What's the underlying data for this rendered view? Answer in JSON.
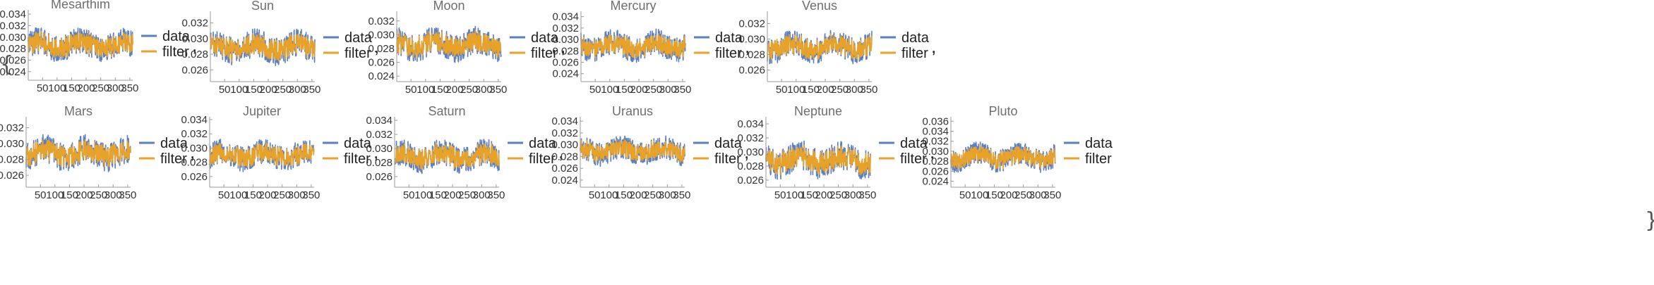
{
  "colors": {
    "data": "#5b7fc4",
    "filter": "#e8a228",
    "axis": "#9a9a9a"
  },
  "legend": {
    "data_label": "data",
    "filter_label": "filter"
  },
  "separator": ",",
  "brace_open": "{",
  "brace_close": "}",
  "chart_data": [
    {
      "type": "line",
      "title": "Mesarthim",
      "xlim": [
        1,
        360
      ],
      "ylim": [
        0.0225,
        0.0345
      ],
      "xticks": [
        50,
        100,
        150,
        200,
        250,
        300,
        350
      ],
      "yticks": [
        0.024,
        0.026,
        0.028,
        0.03,
        0.032,
        0.034
      ],
      "mean": 0.0286,
      "amplitude": 0.0022,
      "series": [
        {
          "name": "data"
        },
        {
          "name": "filter"
        }
      ]
    },
    {
      "type": "line",
      "title": "Sun",
      "xlim": [
        1,
        360
      ],
      "ylim": [
        0.0245,
        0.0333
      ],
      "xticks": [
        50,
        100,
        150,
        200,
        250,
        300,
        350
      ],
      "yticks": [
        0.026,
        0.028,
        0.03,
        0.032
      ],
      "mean": 0.0289,
      "amplitude": 0.0017,
      "series": [
        {
          "name": "data"
        },
        {
          "name": "filter"
        }
      ]
    },
    {
      "type": "line",
      "title": "Moon",
      "xlim": [
        1,
        360
      ],
      "ylim": [
        0.0232,
        0.0332
      ],
      "xticks": [
        50,
        100,
        150,
        200,
        250,
        300,
        350
      ],
      "yticks": [
        0.024,
        0.026,
        0.028,
        0.03,
        0.032
      ],
      "mean": 0.0286,
      "amplitude": 0.0019,
      "series": [
        {
          "name": "data"
        },
        {
          "name": "filter"
        }
      ]
    },
    {
      "type": "line",
      "title": "Mercury",
      "xlim": [
        1,
        360
      ],
      "ylim": [
        0.0226,
        0.0347
      ],
      "xticks": [
        50,
        100,
        150,
        200,
        250,
        300,
        350
      ],
      "yticks": [
        0.024,
        0.026,
        0.028,
        0.03,
        0.032,
        0.034
      ],
      "mean": 0.0289,
      "amplitude": 0.0021,
      "series": [
        {
          "name": "data"
        },
        {
          "name": "filter"
        }
      ]
    },
    {
      "type": "line",
      "title": "Venus",
      "xlim": [
        1,
        360
      ],
      "ylim": [
        0.0245,
        0.0334
      ],
      "xticks": [
        50,
        100,
        150,
        200,
        250,
        300,
        350
      ],
      "yticks": [
        0.026,
        0.028,
        0.03,
        0.032
      ],
      "mean": 0.029,
      "amplitude": 0.0016,
      "series": [
        {
          "name": "data"
        },
        {
          "name": "filter"
        }
      ]
    },
    {
      "type": "line",
      "title": "Mars",
      "xlim": [
        1,
        360
      ],
      "ylim": [
        0.0245,
        0.0332
      ],
      "xticks": [
        50,
        100,
        150,
        200,
        250,
        300,
        350
      ],
      "yticks": [
        0.026,
        0.028,
        0.03,
        0.032
      ],
      "mean": 0.0288,
      "amplitude": 0.0017,
      "series": [
        {
          "name": "data"
        },
        {
          "name": "filter"
        }
      ]
    },
    {
      "type": "line",
      "title": "Jupiter",
      "xlim": [
        1,
        360
      ],
      "ylim": [
        0.0245,
        0.0342
      ],
      "xticks": [
        50,
        100,
        150,
        200,
        250,
        300,
        350
      ],
      "yticks": [
        0.026,
        0.028,
        0.03,
        0.032,
        0.034
      ],
      "mean": 0.029,
      "amplitude": 0.0017,
      "series": [
        {
          "name": "data"
        },
        {
          "name": "filter"
        }
      ]
    },
    {
      "type": "line",
      "title": "Saturn",
      "xlim": [
        1,
        360
      ],
      "ylim": [
        0.0245,
        0.0343
      ],
      "xticks": [
        50,
        100,
        150,
        200,
        250,
        300,
        350
      ],
      "yticks": [
        0.026,
        0.028,
        0.03,
        0.032,
        0.034
      ],
      "mean": 0.0289,
      "amplitude": 0.0018,
      "series": [
        {
          "name": "data"
        },
        {
          "name": "filter"
        }
      ]
    },
    {
      "type": "line",
      "title": "Uranus",
      "xlim": [
        1,
        360
      ],
      "ylim": [
        0.0228,
        0.0345
      ],
      "xticks": [
        50,
        100,
        150,
        200,
        250,
        300,
        350
      ],
      "yticks": [
        0.024,
        0.026,
        0.028,
        0.03,
        0.032,
        0.034
      ],
      "mean": 0.029,
      "amplitude": 0.0019,
      "series": [
        {
          "name": "data"
        },
        {
          "name": "filter"
        }
      ]
    },
    {
      "type": "line",
      "title": "Neptune",
      "xlim": [
        1,
        360
      ],
      "ylim": [
        0.025,
        0.0348
      ],
      "xticks": [
        50,
        100,
        150,
        200,
        250,
        300,
        350
      ],
      "yticks": [
        0.026,
        0.028,
        0.03,
        0.032,
        0.034
      ],
      "mean": 0.0289,
      "amplitude": 0.002,
      "series": [
        {
          "name": "data"
        },
        {
          "name": "filter"
        }
      ]
    },
    {
      "type": "line",
      "title": "Pluto",
      "xlim": [
        1,
        360
      ],
      "ylim": [
        0.0228,
        0.0366
      ],
      "xticks": [
        50,
        100,
        150,
        200,
        250,
        300,
        350
      ],
      "yticks": [
        0.024,
        0.026,
        0.028,
        0.03,
        0.032,
        0.034,
        0.036
      ],
      "mean": 0.0288,
      "amplitude": 0.0022,
      "series": [
        {
          "name": "data"
        },
        {
          "name": "filter"
        }
      ]
    }
  ]
}
